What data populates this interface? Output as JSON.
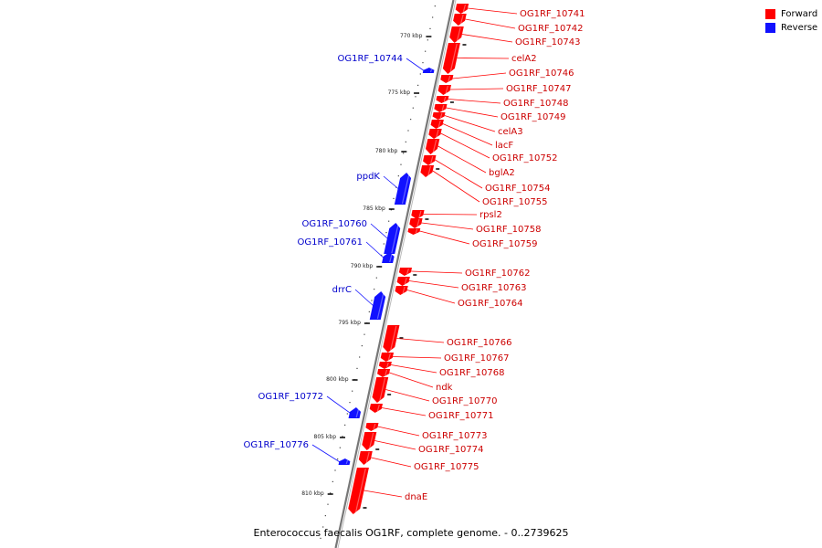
{
  "legend": [
    {
      "label": "Forward",
      "color": "#ff0000"
    },
    {
      "label": "Reverse",
      "color": "#1111ff"
    }
  ],
  "caption": "Enterococcus faecalis OG1RF, complete genome. - 0..2739625",
  "colors": {
    "forward": "#ff0000",
    "reverse": "#1111ff",
    "backbone": "#888888",
    "label_forward": "#cc0000",
    "label_reverse": "#0000cc"
  },
  "scale_labels": [
    "770 kbp",
    "775 kbp",
    "780 kbp",
    "785 kbp",
    "790 kbp",
    "795 kbp",
    "800 kbp",
    "805 kbp",
    "810 kbp"
  ],
  "forward_genes": [
    "OG1RF_10741",
    "OG1RF_10742",
    "OG1RF_10743",
    "celA2",
    "OG1RF_10746",
    "OG1RF_10747",
    "OG1RF_10748",
    "OG1RF_10749",
    "celA3",
    "lacF",
    "OG1RF_10752",
    "bglA2",
    "OG1RF_10754",
    "OG1RF_10755",
    "rpsl2",
    "OG1RF_10758",
    "OG1RF_10759",
    "OG1RF_10762",
    "OG1RF_10763",
    "OG1RF_10764",
    "OG1RF_10766",
    "OG1RF_10767",
    "OG1RF_10768",
    "ndk",
    "OG1RF_10770",
    "OG1RF_10771",
    "OG1RF_10773",
    "OG1RF_10774",
    "OG1RF_10775",
    "dnaE"
  ],
  "reverse_genes": [
    "OG1RF_10744",
    "ppdK",
    "OG1RF_10760",
    "OG1RF_10761",
    "drrC",
    "OG1RF_10772",
    "OG1RF_10776"
  ]
}
